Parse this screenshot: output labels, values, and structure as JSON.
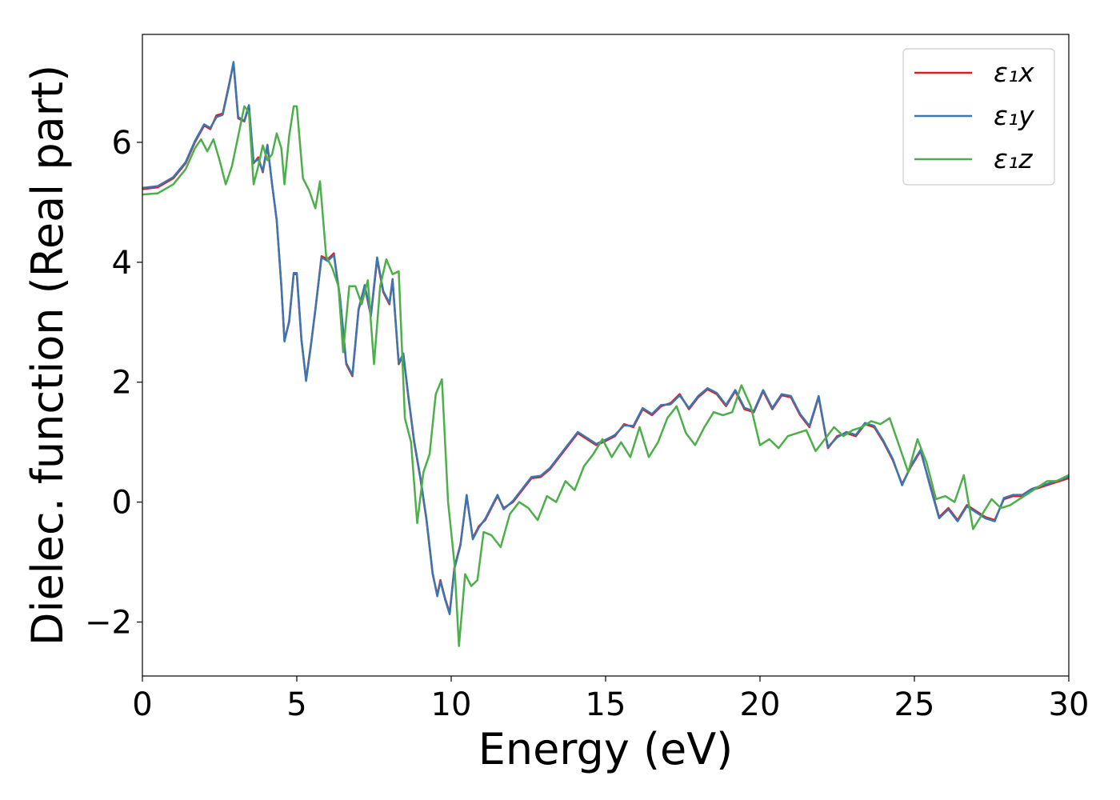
{
  "chart_data": {
    "type": "line",
    "xlabel": "Energy (eV)",
    "ylabel": "Dielec. function (Real part)",
    "xlim": [
      0,
      30
    ],
    "ylim": [
      -2.9,
      7.8
    ],
    "xticks": [
      0,
      5,
      10,
      15,
      20,
      25,
      30
    ],
    "yticks": [
      -2,
      0,
      2,
      4,
      6
    ],
    "xtick_labels": [
      "0",
      "5",
      "10",
      "15",
      "20",
      "25",
      "30"
    ],
    "ytick_labels": [
      "−2",
      "0",
      "2",
      "4",
      "6"
    ],
    "grid": false,
    "legend_position": "top-right",
    "series": [
      {
        "name": "ε₁x",
        "color": "#e41a1c",
        "x": [
          0,
          0.5,
          1.0,
          1.4,
          1.7,
          2.0,
          2.2,
          2.4,
          2.6,
          2.8,
          2.95,
          3.1,
          3.3,
          3.45,
          3.6,
          3.75,
          3.9,
          4.05,
          4.2,
          4.35,
          4.5,
          4.6,
          4.75,
          4.9,
          5.0,
          5.15,
          5.3,
          5.45,
          5.6,
          5.8,
          6.0,
          6.2,
          6.4,
          6.6,
          6.8,
          7.0,
          7.2,
          7.4,
          7.6,
          7.8,
          8.0,
          8.1,
          8.3,
          8.45,
          8.6,
          8.8,
          9.0,
          9.2,
          9.4,
          9.55,
          9.65,
          9.8,
          9.95,
          10.1,
          10.3,
          10.5,
          10.7,
          10.9,
          11.1,
          11.3,
          11.5,
          11.7,
          12.0,
          12.3,
          12.6,
          12.9,
          13.2,
          13.5,
          13.8,
          14.1,
          14.4,
          14.7,
          15.0,
          15.3,
          15.6,
          15.9,
          16.2,
          16.5,
          16.8,
          17.1,
          17.4,
          17.7,
          18.0,
          18.3,
          18.6,
          18.9,
          19.2,
          19.5,
          19.8,
          20.1,
          20.4,
          20.7,
          21.0,
          21.3,
          21.6,
          21.9,
          22.2,
          22.5,
          22.8,
          23.1,
          23.4,
          23.7,
          24.0,
          24.3,
          24.6,
          24.9,
          25.2,
          25.5,
          25.8,
          26.1,
          26.4,
          26.7,
          27.0,
          27.3,
          27.6,
          27.9,
          28.2,
          28.5,
          28.8,
          29.1,
          29.4,
          29.7,
          30.0
        ],
        "y": [
          5.22,
          5.25,
          5.4,
          5.65,
          6.0,
          6.28,
          6.22,
          6.45,
          6.48,
          6.95,
          7.32,
          6.4,
          6.35,
          6.6,
          5.65,
          5.75,
          5.5,
          5.95,
          5.3,
          4.7,
          3.6,
          2.7,
          3.0,
          3.8,
          3.8,
          2.7,
          2.05,
          2.6,
          3.2,
          4.1,
          4.05,
          4.15,
          3.4,
          2.3,
          2.1,
          3.2,
          3.6,
          3.1,
          4.05,
          3.5,
          3.3,
          3.7,
          2.3,
          2.45,
          1.8,
          1.0,
          0.4,
          -0.3,
          -1.2,
          -1.55,
          -1.3,
          -1.6,
          -1.85,
          -1.1,
          -0.7,
          0.1,
          -0.6,
          -0.4,
          -0.3,
          -0.1,
          0.1,
          -0.1,
          0.0,
          0.2,
          0.4,
          0.42,
          0.55,
          0.75,
          0.95,
          1.15,
          1.05,
          0.95,
          1.02,
          1.1,
          1.3,
          1.25,
          1.55,
          1.45,
          1.6,
          1.65,
          1.8,
          1.55,
          1.75,
          1.88,
          1.8,
          1.6,
          1.85,
          1.55,
          1.5,
          1.85,
          1.55,
          1.78,
          1.75,
          1.45,
          1.25,
          1.75,
          0.9,
          1.1,
          1.15,
          1.1,
          1.3,
          1.25,
          1.0,
          0.7,
          0.3,
          0.6,
          0.85,
          0.3,
          -0.25,
          -0.1,
          -0.3,
          -0.05,
          -0.15,
          -0.25,
          -0.3,
          0.05,
          0.1,
          0.1,
          0.2,
          0.25,
          0.3,
          0.35,
          0.4
        ]
      },
      {
        "name": "ε₁y",
        "color": "#3a76b1",
        "x": [
          0,
          0.5,
          1.0,
          1.4,
          1.7,
          2.0,
          2.2,
          2.4,
          2.6,
          2.8,
          2.95,
          3.1,
          3.3,
          3.45,
          3.6,
          3.75,
          3.9,
          4.05,
          4.2,
          4.35,
          4.5,
          4.6,
          4.75,
          4.9,
          5.0,
          5.15,
          5.3,
          5.45,
          5.6,
          5.8,
          6.0,
          6.2,
          6.4,
          6.6,
          6.8,
          7.0,
          7.2,
          7.4,
          7.6,
          7.8,
          8.0,
          8.1,
          8.3,
          8.45,
          8.6,
          8.8,
          9.0,
          9.2,
          9.4,
          9.55,
          9.65,
          9.8,
          9.95,
          10.1,
          10.3,
          10.5,
          10.7,
          10.9,
          11.1,
          11.3,
          11.5,
          11.7,
          12.0,
          12.3,
          12.6,
          12.9,
          13.2,
          13.5,
          13.8,
          14.1,
          14.4,
          14.7,
          15.0,
          15.3,
          15.6,
          15.9,
          16.2,
          16.5,
          16.8,
          17.1,
          17.4,
          17.7,
          18.0,
          18.3,
          18.6,
          18.9,
          19.2,
          19.5,
          19.8,
          20.1,
          20.4,
          20.7,
          21.0,
          21.3,
          21.6,
          21.9,
          22.2,
          22.5,
          22.8,
          23.1,
          23.4,
          23.7,
          24.0,
          24.3,
          24.6,
          24.9,
          25.2,
          25.5,
          25.8,
          26.1,
          26.4,
          26.7,
          27.0,
          27.3,
          27.6,
          27.9,
          28.2,
          28.5,
          28.8,
          29.1,
          29.4,
          29.7,
          30.0
        ],
        "y": [
          5.24,
          5.27,
          5.42,
          5.67,
          6.02,
          6.3,
          6.24,
          6.42,
          6.46,
          6.93,
          7.34,
          6.42,
          6.36,
          6.62,
          5.66,
          5.72,
          5.52,
          5.96,
          5.3,
          4.7,
          3.6,
          2.68,
          3.02,
          3.82,
          3.82,
          2.72,
          2.02,
          2.58,
          3.22,
          4.08,
          4.02,
          4.12,
          3.42,
          2.32,
          2.12,
          3.22,
          3.62,
          3.12,
          4.08,
          3.52,
          3.32,
          3.72,
          2.32,
          2.48,
          1.82,
          1.02,
          0.42,
          -0.28,
          -1.18,
          -1.57,
          -1.32,
          -1.62,
          -1.87,
          -1.12,
          -0.72,
          0.12,
          -0.62,
          -0.42,
          -0.28,
          -0.08,
          0.12,
          -0.12,
          0.02,
          0.22,
          0.42,
          0.44,
          0.57,
          0.77,
          0.97,
          1.17,
          1.07,
          0.97,
          1.04,
          1.12,
          1.28,
          1.27,
          1.57,
          1.47,
          1.62,
          1.63,
          1.78,
          1.57,
          1.77,
          1.9,
          1.82,
          1.62,
          1.87,
          1.57,
          1.52,
          1.87,
          1.57,
          1.8,
          1.77,
          1.47,
          1.27,
          1.77,
          0.92,
          1.08,
          1.17,
          1.12,
          1.32,
          1.27,
          1.02,
          0.72,
          0.28,
          0.62,
          0.87,
          0.28,
          -0.27,
          -0.12,
          -0.32,
          -0.07,
          -0.17,
          -0.27,
          -0.32,
          0.07,
          0.12,
          0.12,
          0.22,
          0.27,
          0.32,
          0.37,
          0.42
        ]
      },
      {
        "name": "ε₁z",
        "color": "#4daf4a",
        "x": [
          0,
          0.5,
          1.0,
          1.4,
          1.7,
          1.9,
          2.1,
          2.3,
          2.5,
          2.7,
          2.9,
          3.1,
          3.3,
          3.45,
          3.6,
          3.75,
          3.9,
          4.05,
          4.2,
          4.35,
          4.5,
          4.6,
          4.75,
          4.9,
          5.0,
          5.2,
          5.4,
          5.6,
          5.75,
          5.95,
          6.15,
          6.35,
          6.5,
          6.7,
          6.9,
          7.1,
          7.3,
          7.5,
          7.7,
          7.9,
          8.1,
          8.3,
          8.5,
          8.7,
          8.9,
          9.1,
          9.3,
          9.5,
          9.7,
          9.9,
          10.1,
          10.25,
          10.45,
          10.65,
          10.85,
          11.05,
          11.3,
          11.6,
          11.9,
          12.2,
          12.5,
          12.8,
          13.1,
          13.4,
          13.7,
          14.0,
          14.3,
          14.6,
          14.9,
          15.2,
          15.5,
          15.8,
          16.1,
          16.4,
          16.7,
          17.0,
          17.3,
          17.6,
          17.9,
          18.2,
          18.5,
          18.8,
          19.1,
          19.4,
          19.7,
          20.0,
          20.3,
          20.6,
          20.9,
          21.2,
          21.5,
          21.8,
          22.1,
          22.4,
          22.7,
          23.0,
          23.3,
          23.6,
          23.9,
          24.2,
          24.5,
          24.8,
          25.1,
          25.4,
          25.7,
          26.0,
          26.3,
          26.6,
          26.9,
          27.2,
          27.5,
          27.8,
          28.1,
          28.4,
          28.7,
          29.0,
          29.3,
          29.6,
          30.0
        ],
        "y": [
          5.13,
          5.15,
          5.3,
          5.55,
          5.9,
          6.05,
          5.85,
          6.05,
          5.7,
          5.3,
          5.6,
          6.1,
          6.6,
          6.5,
          5.3,
          5.6,
          5.95,
          5.7,
          5.8,
          6.15,
          5.9,
          5.3,
          6.1,
          6.6,
          6.6,
          5.4,
          5.2,
          4.9,
          5.35,
          4.1,
          3.9,
          3.6,
          2.5,
          3.6,
          3.6,
          3.3,
          3.7,
          2.3,
          3.6,
          4.05,
          3.8,
          3.85,
          1.4,
          1.0,
          -0.35,
          0.5,
          0.8,
          1.8,
          2.05,
          0.0,
          -1.0,
          -2.4,
          -1.2,
          -1.4,
          -1.3,
          -0.5,
          -0.55,
          -0.75,
          -0.2,
          0.0,
          -0.1,
          -0.3,
          0.1,
          0.0,
          0.35,
          0.2,
          0.6,
          0.8,
          1.05,
          0.75,
          1.0,
          0.75,
          1.25,
          0.75,
          1.0,
          1.4,
          1.6,
          1.15,
          0.95,
          1.25,
          1.5,
          1.45,
          1.5,
          1.95,
          1.6,
          0.95,
          1.05,
          0.9,
          1.1,
          1.15,
          1.2,
          0.85,
          1.05,
          1.25,
          1.1,
          1.2,
          1.25,
          1.35,
          1.3,
          1.4,
          0.95,
          0.5,
          1.05,
          0.65,
          0.05,
          0.1,
          0.0,
          0.45,
          -0.45,
          -0.2,
          0.05,
          -0.1,
          -0.05,
          0.05,
          0.15,
          0.25,
          0.35,
          0.35,
          0.45
        ]
      }
    ]
  }
}
